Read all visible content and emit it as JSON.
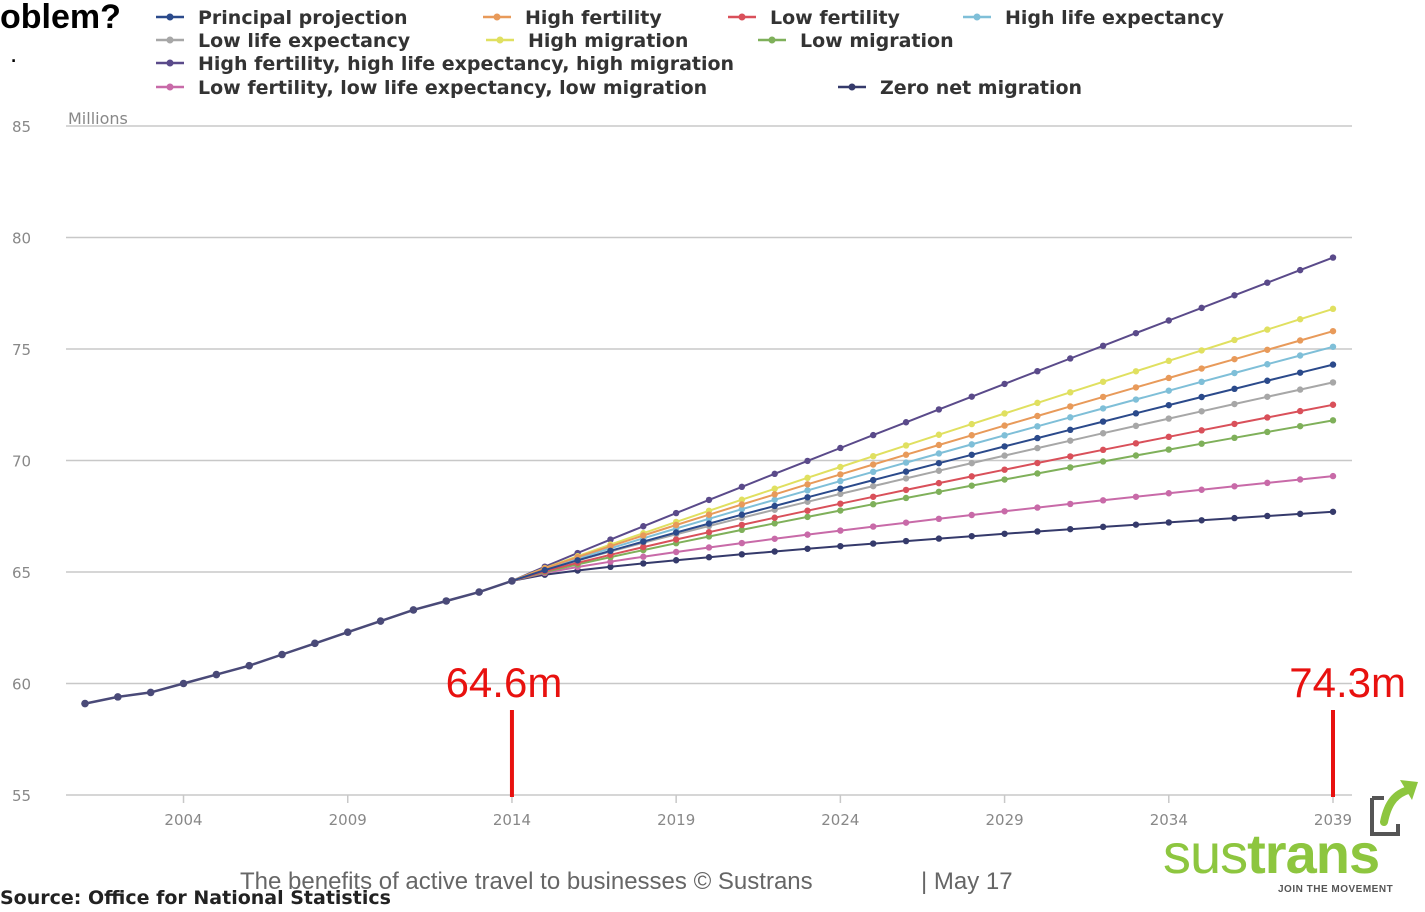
{
  "slide": {
    "title": "oblem?",
    "bullet": ".",
    "footer_text": "The benefits of active travel to businesses © Sustrans",
    "footer_date": "| May 17",
    "source": "Source: Office for National Statistics"
  },
  "logo": {
    "word_light": "sus",
    "word_bold": "trans",
    "tagline": "JOIN THE MOVEMENT",
    "icon": "box-arrow-icon",
    "color": "#8dc63f"
  },
  "chart_data": {
    "type": "line",
    "title": "",
    "xlabel": "",
    "ylabel": "Millions",
    "xlim": [
      2001,
      2039
    ],
    "ylim": [
      55,
      85
    ],
    "x_ticks": [
      2004,
      2009,
      2014,
      2019,
      2024,
      2029,
      2034,
      2039
    ],
    "y_ticks": [
      55,
      60,
      65,
      70,
      75,
      80,
      85
    ],
    "grid": "horizontal",
    "legend_position": "top",
    "history": {
      "x": [
        2001,
        2002,
        2003,
        2004,
        2005,
        2006,
        2007,
        2008,
        2009,
        2010,
        2011,
        2012,
        2013,
        2014
      ],
      "values": [
        59.1,
        59.4,
        59.6,
        60.0,
        60.4,
        60.8,
        61.3,
        61.8,
        62.3,
        62.8,
        63.3,
        63.7,
        64.1,
        64.6
      ]
    },
    "series": [
      {
        "name": "Principal projection",
        "color": "#2b4a8b",
        "end": 74.3,
        "curve": 0.93
      },
      {
        "name": "High fertility",
        "color": "#e89a5a",
        "end": 75.8,
        "curve": 0.93
      },
      {
        "name": "Low fertility",
        "color": "#d9505a",
        "end": 72.5,
        "curve": 0.9
      },
      {
        "name": "High life expectancy",
        "color": "#7fbfd8",
        "end": 75.1,
        "curve": 0.93
      },
      {
        "name": "Low life expectancy",
        "color": "#a7a7a7",
        "end": 73.5,
        "curve": 0.9
      },
      {
        "name": "High migration",
        "color": "#e0e060",
        "end": 76.8,
        "curve": 0.95
      },
      {
        "name": "Low migration",
        "color": "#7fb05a",
        "end": 71.8,
        "curve": 0.9
      },
      {
        "name": "High fertility, high life expectancy, high migration",
        "color": "#5a4a8a",
        "end": 79.1,
        "curve": 0.97
      },
      {
        "name": "Low fertility, low life expectancy, low migration",
        "color": "#c86aa8",
        "end": 69.3,
        "curve": 0.8
      },
      {
        "name": "Zero net migration",
        "color": "#353a6b",
        "end": 67.7,
        "curve": 0.75
      }
    ],
    "annotations": [
      {
        "x": 2014,
        "label": "64.6m",
        "color": "#e8110f"
      },
      {
        "x": 2039,
        "label": "74.3m",
        "color": "#e8110f"
      }
    ]
  }
}
